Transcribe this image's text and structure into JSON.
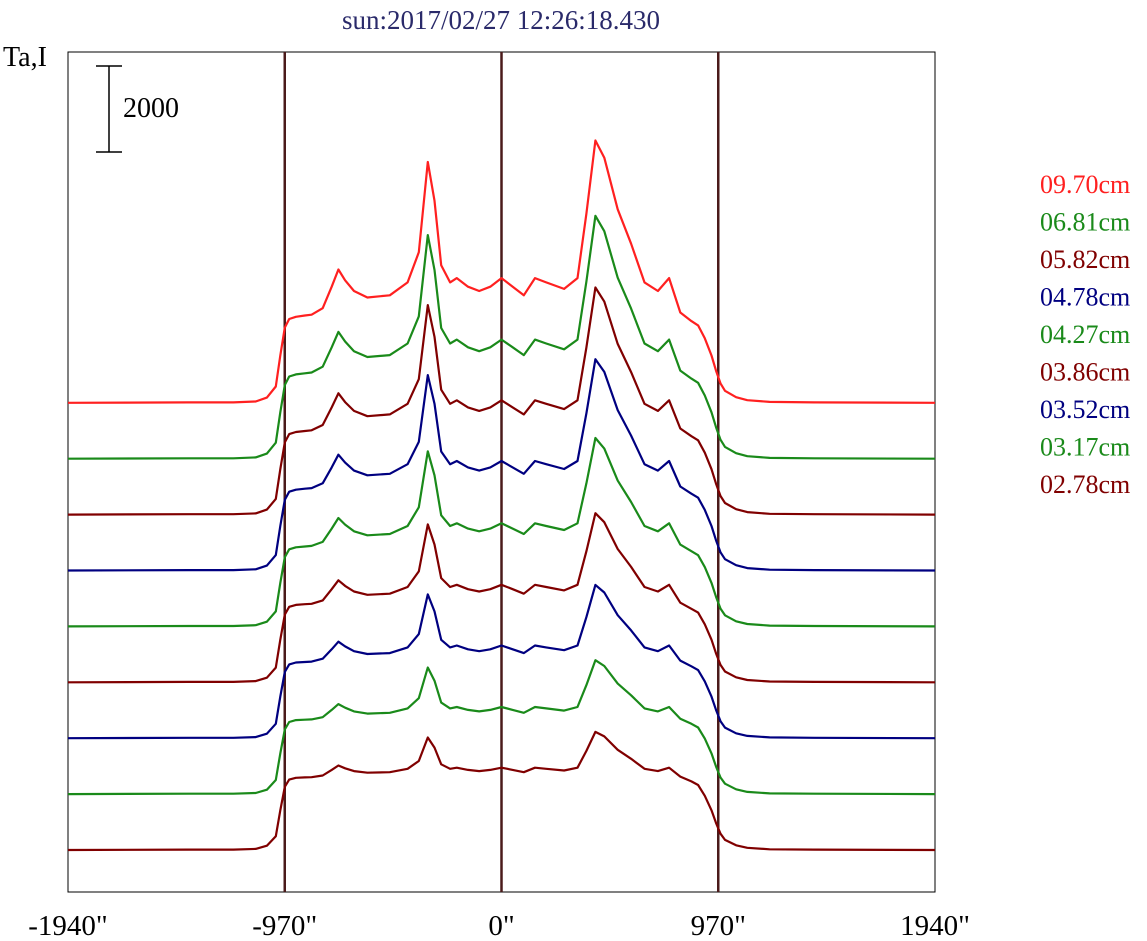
{
  "chart_data": {
    "type": "line",
    "title": "sun:2017/02/27 12:26:18.430",
    "ylabel": "Ta,I",
    "scale_bar": {
      "label": "2000",
      "value": 2000
    },
    "x_ticks": [
      {
        "value": -1940,
        "label": "-1940\""
      },
      {
        "value": -970,
        "label": "-970\""
      },
      {
        "value": 0,
        "label": "0\""
      },
      {
        "value": 970,
        "label": "970\""
      },
      {
        "value": 1940,
        "label": "1940\""
      }
    ],
    "xlim": [
      -1940,
      1940
    ],
    "vertical_lines": [
      -970,
      0,
      970
    ],
    "legend_position": "right",
    "offset_step": 1300,
    "x": [
      -1940,
      -1400,
      -1200,
      -1100,
      -1050,
      -1010,
      -990,
      -970,
      -950,
      -920,
      -880,
      -850,
      -800,
      -760,
      -730,
      -700,
      -660,
      -600,
      -500,
      -420,
      -370,
      -330,
      -300,
      -270,
      -230,
      -200,
      -150,
      -100,
      -50,
      0,
      50,
      100,
      150,
      200,
      280,
      340,
      380,
      420,
      460,
      520,
      580,
      640,
      700,
      750,
      800,
      850,
      880,
      910,
      940,
      960,
      980,
      1000,
      1050,
      1100,
      1200,
      1400,
      1940
    ],
    "series": [
      {
        "name": "09.70cm",
        "color": "#ff2020",
        "peak_scale": 1.0,
        "limb_scale": 1.0,
        "values": [
          0,
          10,
          10,
          30,
          120,
          380,
          1100,
          1750,
          1950,
          2000,
          2030,
          2050,
          2200,
          2700,
          3100,
          2850,
          2600,
          2450,
          2500,
          2800,
          3500,
          5600,
          4700,
          3200,
          2800,
          2900,
          2700,
          2600,
          2700,
          2900,
          2700,
          2500,
          2900,
          2800,
          2650,
          2900,
          4400,
          6100,
          5700,
          4500,
          3700,
          2800,
          2600,
          2900,
          2100,
          1900,
          1800,
          1500,
          1100,
          750,
          450,
          280,
          130,
          60,
          20,
          10,
          0
        ]
      },
      {
        "name": "06.81cm",
        "color": "#1a8a1a",
        "peak_scale": 0.9,
        "limb_scale": 0.98
      },
      {
        "name": "05.82cm",
        "color": "#800000",
        "peak_scale": 0.82,
        "limb_scale": 0.96
      },
      {
        "name": "04.78cm",
        "color": "#000080",
        "peak_scale": 0.74,
        "limb_scale": 0.94
      },
      {
        "name": "04.27cm",
        "color": "#1a8a1a",
        "peak_scale": 0.62,
        "limb_scale": 0.92
      },
      {
        "name": "03.86cm",
        "color": "#800000",
        "peak_scale": 0.52,
        "limb_scale": 0.9
      },
      {
        "name": "03.52cm",
        "color": "#000080",
        "peak_scale": 0.44,
        "limb_scale": 0.88
      },
      {
        "name": "03.17cm",
        "color": "#1a8a1a",
        "peak_scale": 0.34,
        "limb_scale": 0.86
      },
      {
        "name": "02.78cm",
        "color": "#800000",
        "peak_scale": 0.26,
        "limb_scale": 0.84
      }
    ]
  }
}
